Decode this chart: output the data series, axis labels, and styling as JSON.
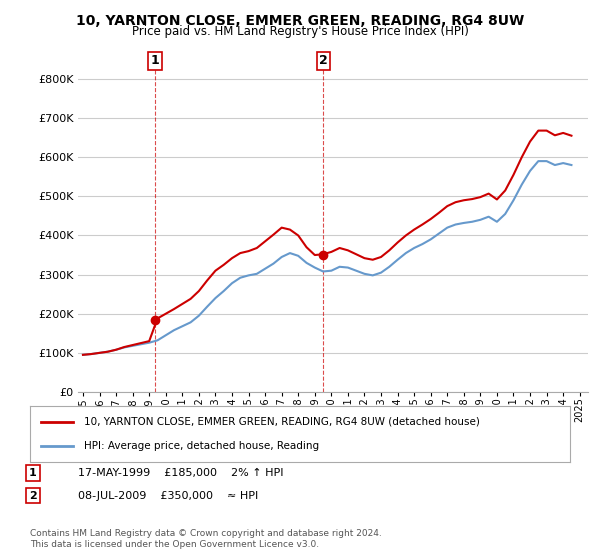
{
  "title": "10, YARNTON CLOSE, EMMER GREEN, READING, RG4 8UW",
  "subtitle": "Price paid vs. HM Land Registry's House Price Index (HPI)",
  "ylabel_ticks": [
    "£0",
    "£100K",
    "£200K",
    "£300K",
    "£400K",
    "£500K",
    "£600K",
    "£700K",
    "£800K"
  ],
  "ytick_values": [
    0,
    100000,
    200000,
    300000,
    400000,
    500000,
    600000,
    700000,
    800000
  ],
  "ylim": [
    0,
    830000
  ],
  "xlim_start": 1995.0,
  "xlim_end": 2025.5,
  "hpi_color": "#6699cc",
  "price_color": "#cc0000",
  "marker1_date": 1999.37,
  "marker1_price": 185000,
  "marker1_label": "1",
  "marker1_info": "17-MAY-1999    £185,000    2% ↑ HPI",
  "marker2_date": 2009.52,
  "marker2_price": 350000,
  "marker2_label": "2",
  "marker2_info": "08-JUL-2009    £350,000    ≈ HPI",
  "legend_line1": "10, YARNTON CLOSE, EMMER GREEN, READING, RG4 8UW (detached house)",
  "legend_line2": "HPI: Average price, detached house, Reading",
  "footer": "Contains HM Land Registry data © Crown copyright and database right 2024.\nThis data is licensed under the Open Government Licence v3.0.",
  "bg_color": "#ffffff",
  "grid_color": "#cccccc",
  "hpi_data_x": [
    1995.0,
    1995.5,
    1996.0,
    1996.5,
    1997.0,
    1997.5,
    1998.0,
    1998.5,
    1999.0,
    1999.5,
    2000.0,
    2000.5,
    2001.0,
    2001.5,
    2002.0,
    2002.5,
    2003.0,
    2003.5,
    2004.0,
    2004.5,
    2005.0,
    2005.5,
    2006.0,
    2006.5,
    2007.0,
    2007.5,
    2008.0,
    2008.5,
    2009.0,
    2009.5,
    2010.0,
    2010.5,
    2011.0,
    2011.5,
    2012.0,
    2012.5,
    2013.0,
    2013.5,
    2014.0,
    2014.5,
    2015.0,
    2015.5,
    2016.0,
    2016.5,
    2017.0,
    2017.5,
    2018.0,
    2018.5,
    2019.0,
    2019.5,
    2020.0,
    2020.5,
    2021.0,
    2021.5,
    2022.0,
    2022.5,
    2023.0,
    2023.5,
    2024.0,
    2024.5
  ],
  "hpi_data_y": [
    95000,
    97000,
    100000,
    103000,
    108000,
    114000,
    118000,
    122000,
    126000,
    132000,
    145000,
    158000,
    168000,
    178000,
    195000,
    218000,
    240000,
    258000,
    278000,
    292000,
    298000,
    302000,
    315000,
    328000,
    345000,
    355000,
    348000,
    330000,
    318000,
    308000,
    310000,
    320000,
    318000,
    310000,
    302000,
    298000,
    305000,
    320000,
    338000,
    355000,
    368000,
    378000,
    390000,
    405000,
    420000,
    428000,
    432000,
    435000,
    440000,
    448000,
    435000,
    455000,
    490000,
    530000,
    565000,
    590000,
    590000,
    580000,
    585000,
    580000
  ],
  "price_data_x": [
    1995.0,
    1995.5,
    1996.0,
    1996.5,
    1997.0,
    1997.5,
    1998.0,
    1998.5,
    1999.0,
    1999.5,
    2000.0,
    2000.5,
    2001.0,
    2001.5,
    2002.0,
    2002.5,
    2003.0,
    2003.5,
    2004.0,
    2004.5,
    2005.0,
    2005.5,
    2006.0,
    2006.5,
    2007.0,
    2007.5,
    2008.0,
    2008.5,
    2009.0,
    2009.5,
    2010.0,
    2010.5,
    2011.0,
    2011.5,
    2012.0,
    2012.5,
    2013.0,
    2013.5,
    2014.0,
    2014.5,
    2015.0,
    2015.5,
    2016.0,
    2016.5,
    2017.0,
    2017.5,
    2018.0,
    2018.5,
    2019.0,
    2019.5,
    2020.0,
    2020.5,
    2021.0,
    2021.5,
    2022.0,
    2022.5,
    2023.0,
    2023.5,
    2024.0,
    2024.5
  ],
  "price_data_y": [
    95000,
    97000,
    100000,
    103000,
    108000,
    115000,
    120000,
    125000,
    130000,
    188000,
    200000,
    212000,
    225000,
    238000,
    258000,
    285000,
    310000,
    325000,
    342000,
    355000,
    360000,
    368000,
    385000,
    402000,
    420000,
    415000,
    400000,
    370000,
    350000,
    352000,
    358000,
    368000,
    362000,
    352000,
    342000,
    338000,
    345000,
    362000,
    382000,
    400000,
    415000,
    428000,
    442000,
    458000,
    475000,
    485000,
    490000,
    493000,
    498000,
    507000,
    492000,
    515000,
    555000,
    600000,
    640000,
    668000,
    668000,
    656000,
    662000,
    655000
  ],
  "xtick_years": [
    "1995",
    "1996",
    "1997",
    "1998",
    "1999",
    "2000",
    "2001",
    "2002",
    "2003",
    "2004",
    "2005",
    "2006",
    "2007",
    "2008",
    "2009",
    "2010",
    "2011",
    "2012",
    "2013",
    "2014",
    "2015",
    "2016",
    "2017",
    "2018",
    "2019",
    "2020",
    "2021",
    "2022",
    "2023",
    "2024",
    "2025"
  ]
}
